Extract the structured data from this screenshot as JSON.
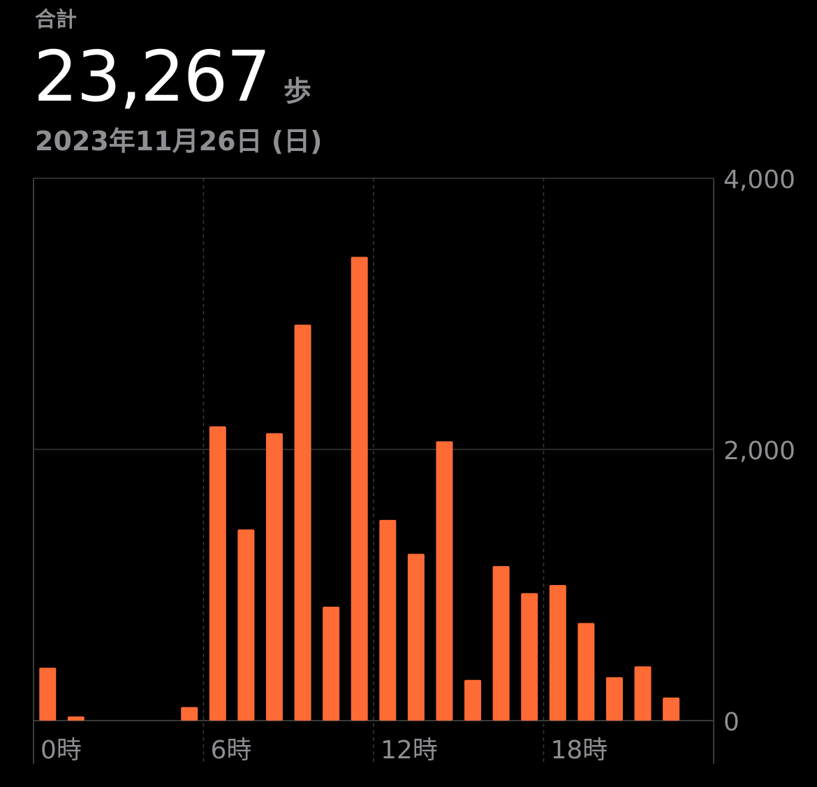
{
  "header": {
    "title": "合計",
    "total": "23,267",
    "unit": "歩",
    "date": "2023年11月26日 (日)"
  },
  "colors": {
    "bar": "#ff6b35",
    "grid": "#3a3a3c",
    "text_secondary": "#8e8e93",
    "background": "#000000"
  },
  "chart_data": {
    "type": "bar",
    "categories": [
      0,
      1,
      2,
      3,
      4,
      5,
      6,
      7,
      8,
      9,
      10,
      11,
      12,
      13,
      14,
      15,
      16,
      17,
      18,
      19,
      20,
      21,
      22,
      23
    ],
    "x_tick_labels": [
      "0時",
      "6時",
      "12時",
      "18時"
    ],
    "x_tick_positions": [
      0,
      6,
      12,
      18
    ],
    "values": [
      390,
      30,
      0,
      0,
      0,
      100,
      2170,
      1410,
      2120,
      2920,
      840,
      3420,
      1480,
      1230,
      2060,
      300,
      1140,
      940,
      1000,
      720,
      320,
      400,
      170,
      0
    ],
    "y_ticks": [
      0,
      2000,
      4000
    ],
    "y_tick_labels": [
      "0",
      "2,000",
      "4,000"
    ],
    "ylim": [
      0,
      4000
    ],
    "xlabel": "",
    "ylabel": "",
    "grid": true
  }
}
